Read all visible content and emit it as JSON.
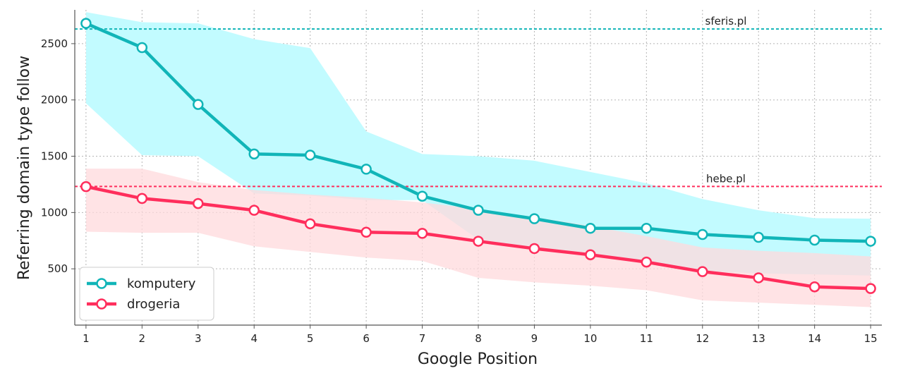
{
  "chart_data": {
    "type": "line",
    "xlabel": "Google Position",
    "ylabel": "Referring domain type follow",
    "x": [
      1,
      2,
      3,
      4,
      5,
      6,
      7,
      8,
      9,
      10,
      11,
      12,
      13,
      14,
      15
    ],
    "xlim": [
      0.8,
      15.2
    ],
    "ylim": [
      0,
      2800
    ],
    "yticks": [
      500,
      1000,
      1500,
      2000,
      2500
    ],
    "grid": true,
    "legend_position": "bottom-left",
    "series": [
      {
        "name": "komputery",
        "color": "#11b5b8",
        "band_color": "#c2fbff",
        "values": [
          2680,
          2465,
          1960,
          1520,
          1510,
          1385,
          1145,
          1020,
          945,
          860,
          860,
          805,
          780,
          755,
          745
        ],
        "band_upper": [
          2780,
          2690,
          2680,
          2540,
          2460,
          1720,
          1520,
          1500,
          1460,
          1360,
          1260,
          1120,
          1020,
          950,
          945
        ],
        "band_lower": [
          1970,
          1510,
          1500,
          1170,
          1150,
          1110,
          1110,
          760,
          690,
          620,
          550,
          480,
          460,
          450,
          440
        ]
      },
      {
        "name": "drogeria",
        "color": "#ff2e5c",
        "band_color": "#ffd9dc",
        "values": [
          1230,
          1125,
          1080,
          1020,
          900,
          825,
          815,
          745,
          680,
          625,
          560,
          475,
          420,
          340,
          325
        ],
        "band_upper": [
          1390,
          1390,
          1270,
          1200,
          1160,
          1130,
          1090,
          1030,
          960,
          880,
          790,
          690,
          660,
          640,
          610
        ],
        "band_lower": [
          830,
          820,
          820,
          700,
          650,
          600,
          570,
          420,
          380,
          350,
          310,
          220,
          200,
          180,
          160
        ]
      }
    ],
    "reference_lines": [
      {
        "label": "sferis.pl",
        "value": 2630,
        "color": "#11b5b8"
      },
      {
        "label": "hebe.pl",
        "value": 1232,
        "color": "#ff2e5c"
      }
    ]
  }
}
